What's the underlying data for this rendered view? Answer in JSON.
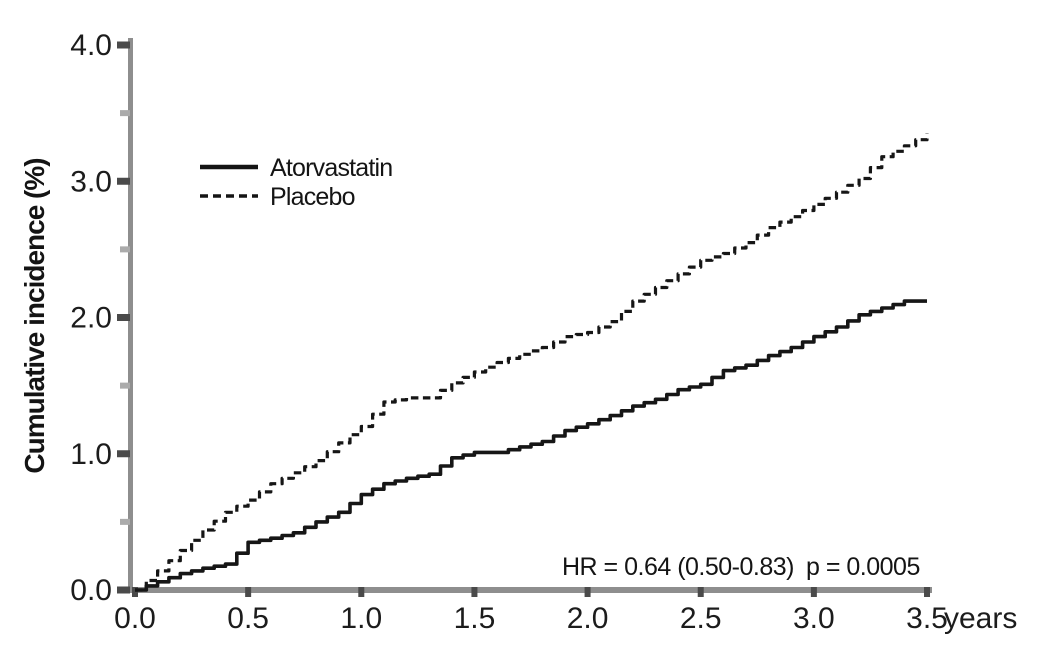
{
  "colors": {
    "line": "#161616",
    "axis": "#8e8e8e",
    "tick_major": "#4a4a4a",
    "tick_minor": "#ababab",
    "text": "#1c1c1c"
  },
  "chart_data": {
    "type": "line",
    "step": true,
    "title": "",
    "ylabel": "Cumulative incidence (%)",
    "xlabel": "",
    "x_unit": "years",
    "xlim": [
      0,
      3.5
    ],
    "ylim": [
      0,
      4.0
    ],
    "x_ticks": [
      0.0,
      0.5,
      1.0,
      1.5,
      2.0,
      2.5,
      3.0,
      3.5
    ],
    "y_ticks": [
      0.0,
      1.0,
      2.0,
      3.0,
      4.0
    ],
    "y_minor_ticks": [
      0.5,
      1.5,
      2.5,
      3.5
    ],
    "grid": false,
    "legend_position": "upper left inside",
    "annotations": {
      "hr": "HR = 0.64 (0.50-0.83)",
      "p": "p = 0.0005"
    },
    "x": [
      0.0,
      0.1,
      0.2,
      0.3,
      0.4,
      0.5,
      0.6,
      0.7,
      0.8,
      0.9,
      1.0,
      1.1,
      1.2,
      1.3,
      1.4,
      1.5,
      1.6,
      1.7,
      1.8,
      1.9,
      2.0,
      2.1,
      2.2,
      2.3,
      2.4,
      2.5,
      2.6,
      2.7,
      2.8,
      2.9,
      3.0,
      3.1,
      3.2,
      3.3,
      3.4,
      3.5
    ],
    "series": [
      {
        "name": "Atorvastatin",
        "line": "solid",
        "values": [
          0.0,
          0.06,
          0.12,
          0.16,
          0.19,
          0.35,
          0.38,
          0.42,
          0.5,
          0.57,
          0.7,
          0.78,
          0.82,
          0.85,
          0.97,
          1.01,
          1.01,
          1.05,
          1.09,
          1.17,
          1.22,
          1.28,
          1.35,
          1.4,
          1.47,
          1.51,
          1.61,
          1.65,
          1.72,
          1.78,
          1.86,
          1.93,
          2.02,
          2.07,
          2.12,
          2.12
        ]
      },
      {
        "name": "Placebo",
        "line": "dashed",
        "values": [
          0.0,
          0.14,
          0.29,
          0.44,
          0.57,
          0.66,
          0.78,
          0.86,
          0.95,
          1.08,
          1.2,
          1.38,
          1.41,
          1.41,
          1.52,
          1.6,
          1.67,
          1.73,
          1.78,
          1.86,
          1.89,
          1.97,
          2.12,
          2.22,
          2.32,
          2.42,
          2.47,
          2.55,
          2.66,
          2.74,
          2.83,
          2.92,
          3.02,
          3.18,
          3.26,
          3.35
        ]
      }
    ]
  }
}
